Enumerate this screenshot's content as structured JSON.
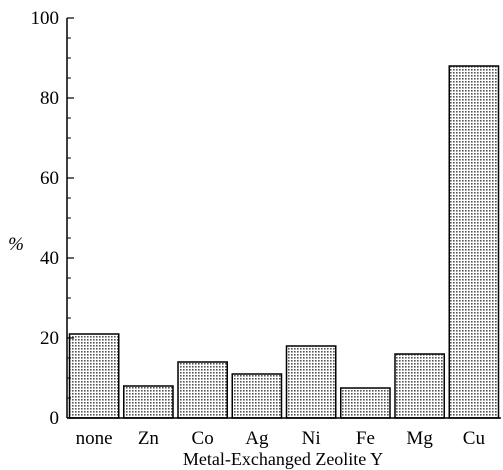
{
  "chart_data": {
    "type": "bar",
    "categories": [
      "none",
      "Zn",
      "Co",
      "Ag",
      "Ni",
      "Fe",
      "Mg",
      "Cu"
    ],
    "values": [
      21,
      8,
      14,
      11,
      18,
      7.5,
      16,
      88
    ],
    "xlabel": "Metal-Exchanged Zeolite Y",
    "ylabel": "%",
    "ylim": [
      0,
      100
    ],
    "yticks": [
      0,
      20,
      40,
      60,
      80,
      100
    ],
    "grid": false,
    "legend": "none",
    "bar_fill": "#c8c8c8",
    "bar_stroke": "#000000"
  }
}
